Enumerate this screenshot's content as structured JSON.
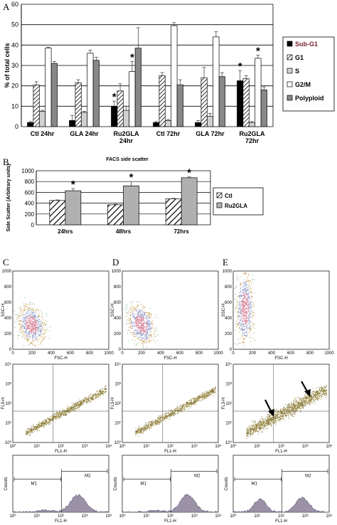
{
  "panels": {
    "a": "A",
    "b": "B",
    "c": "C",
    "d": "D",
    "e": "E"
  },
  "chart_data": [
    {
      "type": "bar",
      "ylabel": "% of total cells",
      "ylim": [
        0,
        60
      ],
      "yticks": [
        0,
        10,
        20,
        30,
        40,
        50,
        60
      ],
      "categories": [
        [
          "Ctl 24hr"
        ],
        [
          "GLA 24hr"
        ],
        [
          "Ru2GLA",
          "24hr"
        ],
        [
          "Ctl 72hr"
        ],
        [
          "GLA 72hr"
        ],
        [
          "Ru2GLA",
          "72hr"
        ]
      ],
      "series": [
        {
          "name": "Sub-G1",
          "values": [
            2,
            3,
            10,
            2,
            2,
            22.5
          ],
          "errors": [
            0.5,
            2.5,
            2.5,
            0.5,
            1,
            5
          ],
          "color": "#000000"
        },
        {
          "name": "G1",
          "values": [
            20.5,
            21.5,
            17.5,
            25,
            24,
            23.5
          ],
          "errors": [
            1.5,
            1.5,
            3.5,
            1.5,
            5,
            1.5
          ],
          "color": "#ffffff"
        },
        {
          "name": "S",
          "values": [
            7.5,
            7,
            8,
            3,
            5,
            2
          ],
          "errors": [
            0.5,
            0.5,
            2,
            0.5,
            1.5,
            0.5
          ],
          "color": "#d0d0d0"
        },
        {
          "name": "G2/M",
          "values": [
            38.5,
            36,
            27,
            49.5,
            44,
            33.5
          ],
          "errors": [
            0.5,
            1.5,
            5,
            1.5,
            2.5,
            1.5
          ],
          "color": "#ffffff"
        },
        {
          "name": "Polyploid",
          "values": [
            31,
            32.5,
            38.5,
            20.5,
            24.5,
            18
          ],
          "errors": [
            1,
            1.5,
            10,
            2.5,
            2,
            1.5
          ],
          "color": "#888888"
        }
      ],
      "significance": [
        {
          "category": 2,
          "series": 0
        },
        {
          "category": 2,
          "series": 3
        },
        {
          "category": 5,
          "series": 0
        },
        {
          "category": 5,
          "series": 3
        }
      ],
      "star": "*",
      "grid": true,
      "legend": "right"
    },
    {
      "type": "bar",
      "title": "FACS side scatter",
      "ylabel": "Side Scatter (Arbitrary units)",
      "ylim": [
        0,
        1000
      ],
      "yticks": [
        0,
        200,
        400,
        600,
        800,
        1000
      ],
      "categories": [
        "24hrs",
        "48hrs",
        "72hrs"
      ],
      "series": [
        {
          "name": "Ctl",
          "values": [
            450,
            370,
            480
          ],
          "errors": [
            10,
            10,
            10
          ]
        },
        {
          "name": "Ru2GLA",
          "values": [
            630,
            720,
            870
          ],
          "errors": [
            40,
            80,
            15
          ]
        }
      ],
      "significance": [
        0,
        1,
        2
      ],
      "star": "*",
      "grid": true,
      "legend": "right"
    }
  ],
  "flow": {
    "scatter_x_label": "FSC-H",
    "scatter_y_label": "SSC-H",
    "scatter_ticks": [
      "0",
      "200",
      "400",
      "600",
      "800",
      "1000"
    ],
    "fl_x_label": "FL1-H",
    "fl_y_label": "FL3-H",
    "hist_y_label": "Counts",
    "hist_x_label": "FL1-H",
    "log_ticks": [
      "10⁰",
      "10¹",
      "10²",
      "10³",
      "10⁴"
    ],
    "markers": [
      "M1",
      "M2"
    ]
  }
}
